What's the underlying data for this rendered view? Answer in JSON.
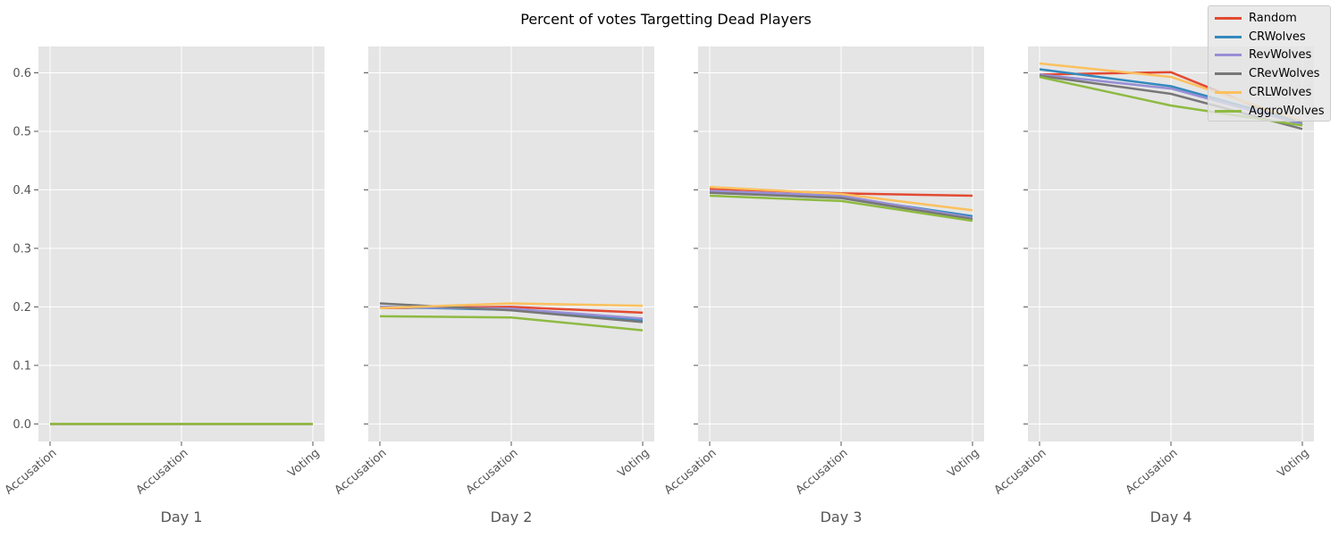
{
  "figure": {
    "title": "Percent of votes Targetting Dead Players"
  },
  "legend": {
    "placement": "top-right",
    "items": [
      {
        "label": "Random",
        "color": "#E24A33"
      },
      {
        "label": "CRWolves",
        "color": "#348ABD"
      },
      {
        "label": "RevWolves",
        "color": "#988ED5"
      },
      {
        "label": "CRevWolves",
        "color": "#777777"
      },
      {
        "label": "CRLWolves",
        "color": "#FBC15E"
      },
      {
        "label": "AggroWolves",
        "color": "#8EBA42"
      }
    ]
  },
  "style": {
    "panel_bg": "#E5E5E5",
    "grid_color": "#FFFFFF",
    "tick_color": "#555555",
    "label_color": "#555555"
  },
  "chart_data": {
    "type": "line",
    "title": "Percent of votes Targetting Dead Players",
    "shared_y": true,
    "ylim": [
      -0.03,
      0.645
    ],
    "yticks": [
      "0.0",
      "0.1",
      "0.2",
      "0.3",
      "0.4",
      "0.5",
      "0.6"
    ],
    "categories": [
      "Accusation",
      "Accusation",
      "Voting"
    ],
    "grid": true,
    "legend_placement": "top-right",
    "panels": [
      {
        "xlabel": "Day 1",
        "series": [
          {
            "name": "Random",
            "values": [
              0.0,
              0.0,
              0.0
            ]
          },
          {
            "name": "CRWolves",
            "values": [
              0.0,
              0.0,
              0.0
            ]
          },
          {
            "name": "RevWolves",
            "values": [
              0.0,
              0.0,
              0.0
            ]
          },
          {
            "name": "CRevWolves",
            "values": [
              0.0,
              0.0,
              0.0
            ]
          },
          {
            "name": "CRLWolves",
            "values": [
              0.0,
              0.0,
              0.0
            ]
          },
          {
            "name": "AggroWolves",
            "values": [
              0.0,
              0.0,
              0.0
            ]
          }
        ]
      },
      {
        "xlabel": "Day 2",
        "series": [
          {
            "name": "Random",
            "values": [
              0.198,
              0.2,
              0.19
            ]
          },
          {
            "name": "CRWolves",
            "values": [
              0.2,
              0.195,
              0.177
            ]
          },
          {
            "name": "RevWolves",
            "values": [
              0.2,
              0.197,
              0.18
            ]
          },
          {
            "name": "CRevWolves",
            "values": [
              0.206,
              0.194,
              0.174
            ]
          },
          {
            "name": "CRLWolves",
            "values": [
              0.198,
              0.206,
              0.202
            ]
          },
          {
            "name": "AggroWolves",
            "values": [
              0.184,
              0.182,
              0.16
            ]
          }
        ]
      },
      {
        "xlabel": "Day 3",
        "series": [
          {
            "name": "Random",
            "values": [
              0.402,
              0.394,
              0.39
            ]
          },
          {
            "name": "CRWolves",
            "values": [
              0.396,
              0.388,
              0.355
            ]
          },
          {
            "name": "RevWolves",
            "values": [
              0.398,
              0.39,
              0.352
            ]
          },
          {
            "name": "CRevWolves",
            "values": [
              0.395,
              0.386,
              0.35
            ]
          },
          {
            "name": "CRLWolves",
            "values": [
              0.405,
              0.393,
              0.365
            ]
          },
          {
            "name": "AggroWolves",
            "values": [
              0.39,
              0.381,
              0.347
            ]
          }
        ]
      },
      {
        "xlabel": "Day 4",
        "series": [
          {
            "name": "Random",
            "values": [
              0.597,
              0.601,
              0.51
            ]
          },
          {
            "name": "CRWolves",
            "values": [
              0.606,
              0.577,
              0.515
            ]
          },
          {
            "name": "RevWolves",
            "values": [
              0.597,
              0.573,
              0.512
            ]
          },
          {
            "name": "CRevWolves",
            "values": [
              0.595,
              0.564,
              0.504
            ]
          },
          {
            "name": "CRLWolves",
            "values": [
              0.616,
              0.593,
              0.517
            ]
          },
          {
            "name": "AggroWolves",
            "values": [
              0.593,
              0.544,
              0.51
            ]
          }
        ]
      }
    ]
  }
}
